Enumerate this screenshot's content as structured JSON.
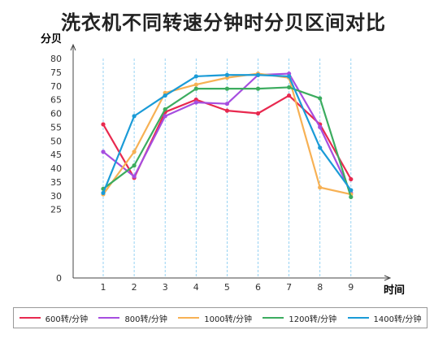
{
  "chart_data": {
    "type": "line",
    "title": "洗衣机不同转速分钟时分贝区间对比",
    "ylabel": "分贝",
    "xlabel": "时间",
    "x": [
      1,
      2,
      3,
      4,
      5,
      6,
      7,
      8,
      9
    ],
    "ylim": [
      0,
      80
    ],
    "yticks": [
      0,
      25,
      30,
      35,
      40,
      45,
      50,
      55,
      60,
      65,
      70,
      75,
      80
    ],
    "grid": "vertical",
    "legend_position": "bottom",
    "series": [
      {
        "name": "600转/分钟",
        "color": "#e8294f",
        "values": [
          56,
          36.5,
          60.5,
          65,
          61,
          60,
          66.5,
          56,
          36
        ]
      },
      {
        "name": "800转/分钟",
        "color": "#a64ee0",
        "values": [
          46,
          37,
          59,
          64,
          63.5,
          74,
          74.5,
          55,
          31
        ]
      },
      {
        "name": "1000转/分钟",
        "color": "#f7b154",
        "values": [
          30.5,
          46,
          67.5,
          70.5,
          73,
          74.5,
          73,
          33,
          30.5
        ]
      },
      {
        "name": "1200转/分钟",
        "color": "#3cac5f",
        "values": [
          32.5,
          41,
          61.5,
          69,
          69,
          69,
          69.5,
          65.5,
          29.5
        ]
      },
      {
        "name": "1400转/分钟",
        "color": "#1a9bd7",
        "values": [
          31,
          59,
          66.5,
          73.5,
          74,
          74,
          73.5,
          47.5,
          32
        ]
      }
    ]
  }
}
